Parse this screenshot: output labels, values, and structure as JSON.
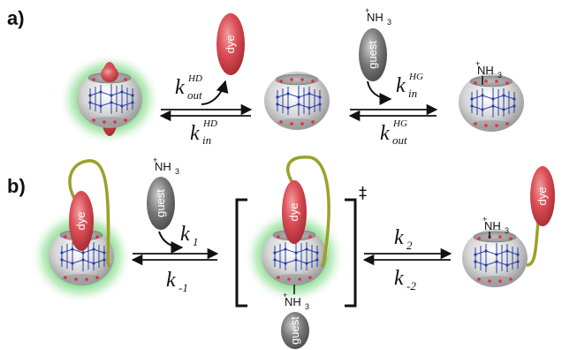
{
  "panels": {
    "a": {
      "label": "a)"
    },
    "b": {
      "label": "b)"
    }
  },
  "molecules": {
    "dye": "dye",
    "guest": "guest",
    "ammonium": "NH",
    "ammonium_subscript": "3",
    "ammonium_charge": "+"
  },
  "transition_state_symbol": "‡",
  "rate_constants": {
    "a_out_HD": {
      "main": "k",
      "sub": "out",
      "sup": "HD"
    },
    "a_in_HD": {
      "main": "k",
      "sub": "in",
      "sup": "HD"
    },
    "a_in_HG": {
      "main": "k",
      "sub": "in",
      "sup": "HG"
    },
    "a_out_HG": {
      "main": "k",
      "sub": "out",
      "sup": "HG"
    },
    "b_k1": {
      "main": "k",
      "sub": "1"
    },
    "b_km1": {
      "main": "k",
      "sub": "-1"
    },
    "b_k2": {
      "main": "k",
      "sub": "2"
    },
    "b_km2": {
      "main": "k",
      "sub": "-2"
    }
  },
  "colors": {
    "dye_red": "#d9434b",
    "guest_grey": "#6f6f6f",
    "host_grey": "#c9c9c9",
    "glow_green": "#2fbf3a",
    "tether_olive": "#9aa12a",
    "nitrogen_blue": "#2a3fa8",
    "oxygen_red": "#e2303a"
  }
}
